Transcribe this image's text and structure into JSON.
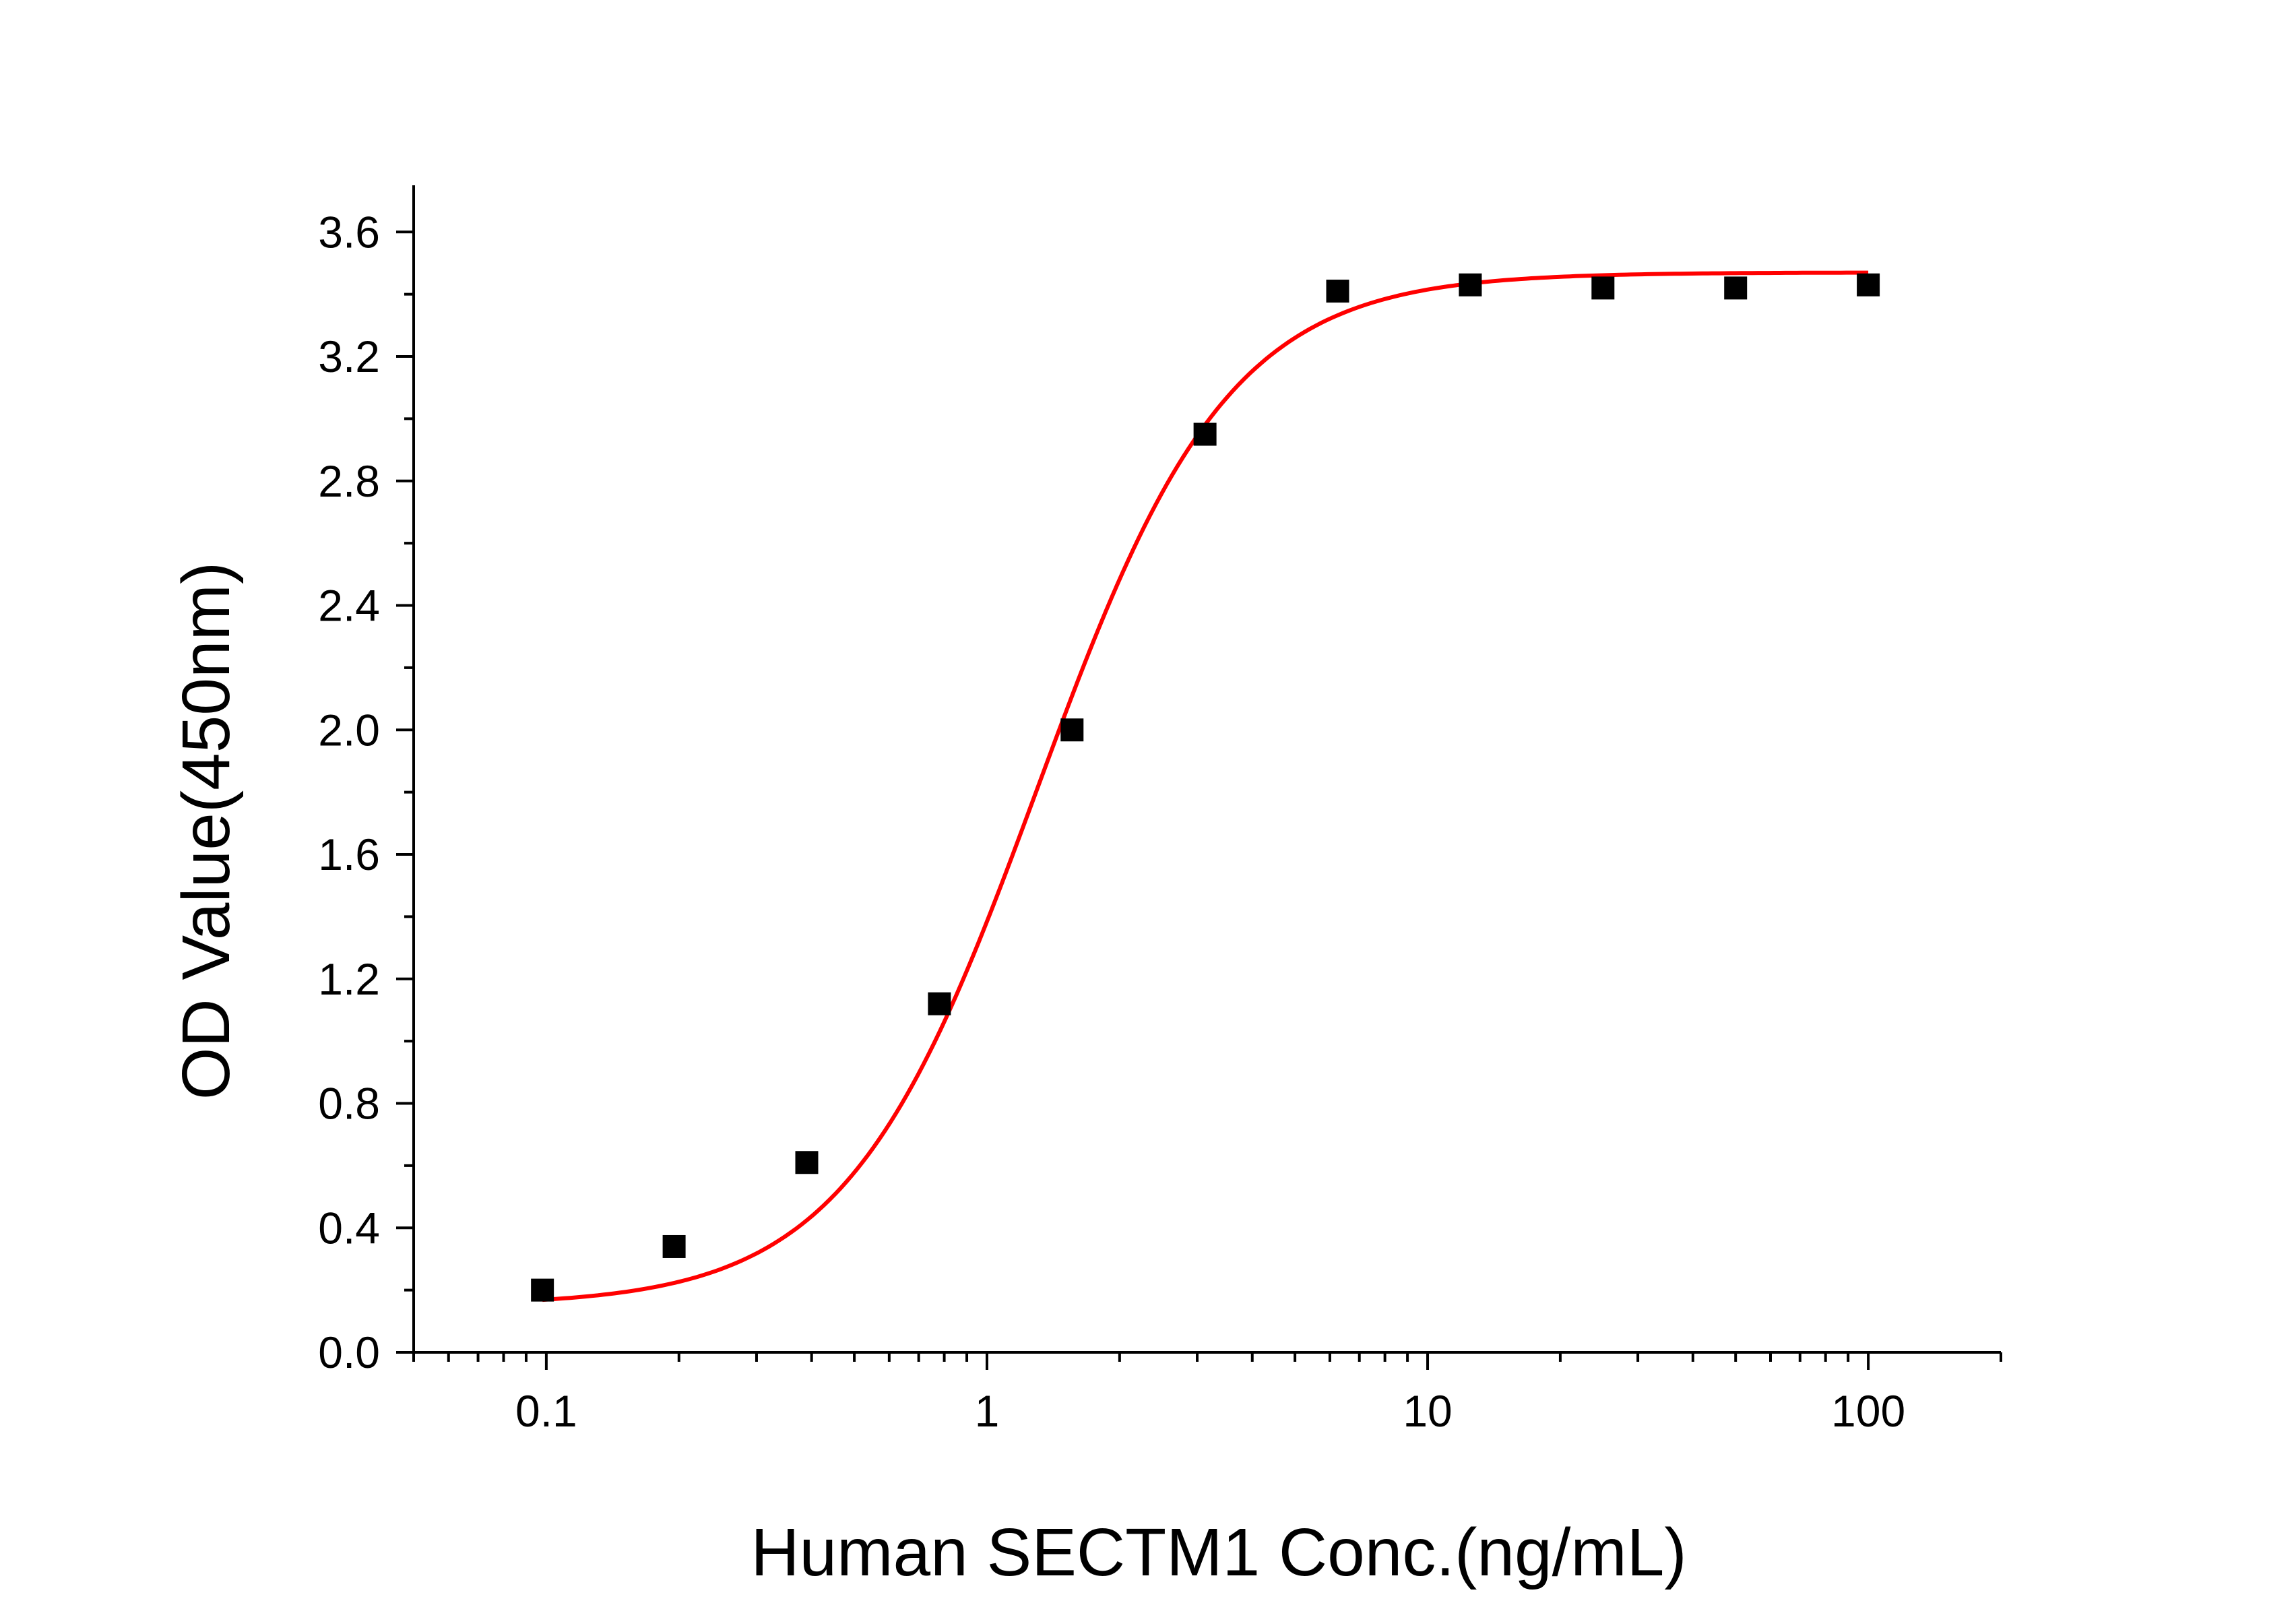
{
  "chart_data": {
    "type": "scatter",
    "xlabel": "Human SECTM1 Conc.(ng/mL)",
    "ylabel": "OD Value(450nm)",
    "x_scale": "log",
    "xlim": [
      0.05,
      200
    ],
    "ylim": [
      0,
      3.75
    ],
    "x_ticks": [
      0.1,
      1,
      10,
      100
    ],
    "x_tick_labels": [
      "0.1",
      "1",
      "10",
      "100"
    ],
    "y_ticks": [
      0.0,
      0.4,
      0.8,
      1.2,
      1.6,
      2.0,
      2.4,
      2.8,
      3.2,
      3.6
    ],
    "y_tick_labels": [
      "0.0",
      "0.4",
      "0.8",
      "1.2",
      "1.6",
      "2.0",
      "2.4",
      "2.8",
      "3.2",
      "3.6"
    ],
    "grid": false,
    "legend": "none",
    "series": [
      {
        "kind": "points",
        "marker": "square",
        "color": "#000000",
        "x": [
          0.098,
          0.195,
          0.39,
          0.78,
          1.56,
          3.125,
          6.25,
          12.5,
          25,
          50,
          100
        ],
        "y": [
          0.2,
          0.34,
          0.61,
          1.12,
          2.0,
          2.95,
          3.41,
          3.43,
          3.42,
          3.42,
          3.43
        ]
      },
      {
        "kind": "fit",
        "color": "#ff0000",
        "model": "4PL",
        "params": {
          "bottom": 0.15,
          "top": 3.47,
          "ec50": 1.3,
          "hill": 2.0
        },
        "x_range": [
          0.098,
          100
        ]
      }
    ]
  }
}
